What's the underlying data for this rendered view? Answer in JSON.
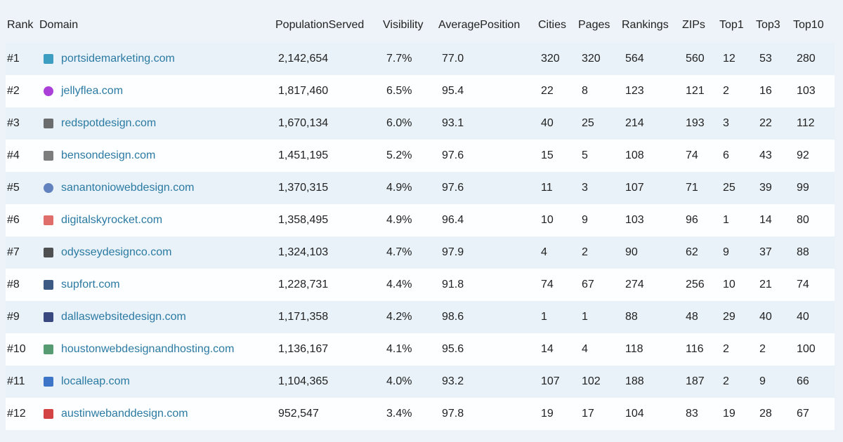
{
  "table": {
    "columns": [
      "Rank",
      "Domain",
      "PopulationServed",
      "Visibility",
      "AveragePosition",
      "Cities",
      "Pages",
      "Rankings",
      "ZIPs",
      "Top1",
      "Top3",
      "Top10"
    ],
    "rows": [
      [
        "#1",
        "portsidemarketing.com",
        "2,142,654",
        "7.7%",
        "77.0",
        "320",
        "320",
        "564",
        "560",
        "12",
        "53",
        "280"
      ],
      [
        "#2",
        "jellyflea.com",
        "1,817,460",
        "6.5%",
        "95.4",
        "22",
        "8",
        "123",
        "121",
        "2",
        "16",
        "103"
      ],
      [
        "#3",
        "redspotdesign.com",
        "1,670,134",
        "6.0%",
        "93.1",
        "40",
        "25",
        "214",
        "193",
        "3",
        "22",
        "112"
      ],
      [
        "#4",
        "bensondesign.com",
        "1,451,195",
        "5.2%",
        "97.6",
        "15",
        "5",
        "108",
        "74",
        "6",
        "43",
        "92"
      ],
      [
        "#5",
        "sanantoniowebdesign.com",
        "1,370,315",
        "4.9%",
        "97.6",
        "11",
        "3",
        "107",
        "71",
        "25",
        "39",
        "99"
      ],
      [
        "#6",
        "digitalskyrocket.com",
        "1,358,495",
        "4.9%",
        "96.4",
        "10",
        "9",
        "103",
        "96",
        "1",
        "14",
        "80"
      ],
      [
        "#7",
        "odysseydesignco.com",
        "1,324,103",
        "4.7%",
        "97.9",
        "4",
        "2",
        "90",
        "62",
        "9",
        "37",
        "88"
      ],
      [
        "#8",
        "supfort.com",
        "1,228,731",
        "4.4%",
        "91.8",
        "74",
        "67",
        "274",
        "256",
        "10",
        "21",
        "74"
      ],
      [
        "#9",
        "dallaswebsitedesign.com",
        "1,171,358",
        "4.2%",
        "98.6",
        "1",
        "1",
        "88",
        "48",
        "29",
        "40",
        "40"
      ],
      [
        "#10",
        "houstonwebdesignandhosting.com",
        "1,136,167",
        "4.1%",
        "95.6",
        "14",
        "4",
        "118",
        "116",
        "2",
        "2",
        "100"
      ],
      [
        "#11",
        "localleap.com",
        "1,104,365",
        "4.0%",
        "93.2",
        "107",
        "102",
        "188",
        "187",
        "2",
        "9",
        "66"
      ],
      [
        "#12",
        "austinwebanddesign.com",
        "952,547",
        "3.4%",
        "97.8",
        "19",
        "17",
        "104",
        "83",
        "19",
        "28",
        "67"
      ]
    ]
  }
}
